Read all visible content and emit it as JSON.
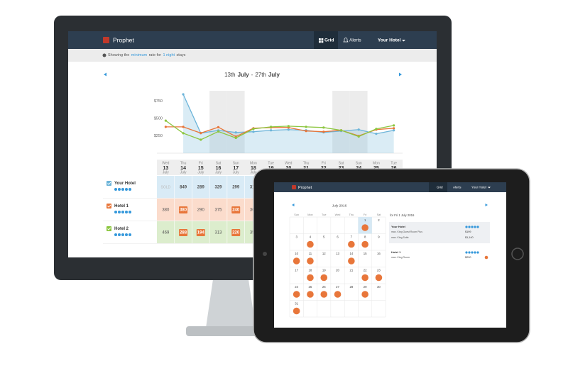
{
  "desktop": {
    "nav": {
      "brand": "Prophet",
      "grid": "Grid",
      "alerts": "Alerts",
      "hotel": "Your Hotel"
    },
    "info": [
      "Showing the",
      "minimum",
      "rate for",
      "1 night",
      "stays"
    ],
    "range": [
      "13th",
      "July",
      "-",
      "27th",
      "July"
    ],
    "weekdays": [
      "Wed",
      "Thu",
      "Fri",
      "Sat",
      "Sun",
      "Mon",
      "Tue",
      "Wed",
      "Thu",
      "Fri",
      "Sat",
      "Sun",
      "Mon",
      "Tue"
    ],
    "month": "July",
    "sold": "SOLD"
  },
  "chart_data": {
    "type": "line",
    "categories": [
      "13",
      "14",
      "15",
      "16",
      "17",
      "18",
      "19",
      "20",
      "21",
      "22",
      "23",
      "24",
      "25",
      "26"
    ],
    "ylim": [
      0,
      900
    ],
    "yticks": [
      {
        "value": 250,
        "label": "$250"
      },
      {
        "value": 500,
        "label": "$500"
      },
      {
        "value": 750,
        "label": "$750"
      }
    ],
    "grid": false,
    "shaded": [
      3,
      4,
      10,
      11
    ],
    "series": [
      {
        "name": "Your Hotel",
        "color": "#6cb4d9",
        "cell_color": "#d9ebf6",
        "area": true,
        "highlight": [],
        "values": [
          null,
          849,
          289,
          329,
          299,
          310,
          330,
          340,
          330,
          300,
          320,
          340,
          280,
          330
        ]
      },
      {
        "name": "Hotel 1",
        "color": "#e8763a",
        "cell_color": "#fbdccc",
        "area": false,
        "highlight": [
          1,
          4
        ],
        "values": [
          380,
          380,
          290,
          375,
          240,
          360,
          370,
          370,
          320,
          310,
          330,
          250,
          340,
          360
        ]
      },
      {
        "name": "Hotel 2",
        "color": "#8cc63f",
        "cell_color": "#dcedcd",
        "area": false,
        "highlight": [
          1,
          2,
          4
        ],
        "values": [
          469,
          288,
          194,
          313,
          220,
          350,
          380,
          390,
          380,
          370,
          330,
          240,
          350,
          400
        ]
      }
    ]
  },
  "tablet": {
    "nav": {
      "brand": "Prophet",
      "grid": "Grid",
      "alerts": "Alerts",
      "hotel": "Your Hotel"
    },
    "month": "July 2016",
    "weekdays": [
      "Sun",
      "Mon",
      "Tue",
      "Wed",
      "Thu",
      "Fri",
      "Sat"
    ],
    "days": [
      {
        "day": 1,
        "alert": true,
        "selected": true
      },
      {
        "day": 2,
        "alert": false
      },
      {
        "day": 3,
        "alert": false
      },
      {
        "day": 4,
        "alert": true
      },
      {
        "day": 5,
        "alert": false
      },
      {
        "day": 6,
        "alert": false
      },
      {
        "day": 7,
        "alert": true
      },
      {
        "day": 8,
        "alert": true
      },
      {
        "day": 9,
        "alert": false
      },
      {
        "day": 10,
        "alert": true
      },
      {
        "day": 11,
        "alert": true
      },
      {
        "day": 12,
        "alert": false
      },
      {
        "day": 13,
        "alert": false
      },
      {
        "day": 14,
        "alert": true
      },
      {
        "day": 15,
        "alert": false
      },
      {
        "day": 16,
        "alert": false
      },
      {
        "day": 17,
        "alert": false
      },
      {
        "day": 18,
        "alert": true
      },
      {
        "day": 19,
        "alert": true
      },
      {
        "day": 20,
        "alert": false
      },
      {
        "day": 21,
        "alert": false
      },
      {
        "day": 22,
        "alert": true
      },
      {
        "day": 23,
        "alert": true
      },
      {
        "day": 24,
        "alert": true
      },
      {
        "day": 25,
        "alert": true
      },
      {
        "day": 26,
        "alert": true
      },
      {
        "day": 27,
        "alert": true
      },
      {
        "day": 28,
        "alert": false
      },
      {
        "day": 29,
        "alert": true
      },
      {
        "day": 30,
        "alert": false
      },
      {
        "day": 31,
        "alert": true
      }
    ],
    "panel": {
      "date": "for Fri 1 July 2016",
      "hotels": [
        {
          "name": "Your Hotel",
          "rooms": [
            {
              "name": "max. King Guest Room Plus",
              "price": "$199"
            },
            {
              "name": "max. King Suite",
              "price": "$1,140"
            }
          ]
        },
        {
          "name": "Hotel 1",
          "rooms": [
            {
              "name": "max. King Room",
              "price": "$290"
            }
          ]
        }
      ]
    }
  }
}
